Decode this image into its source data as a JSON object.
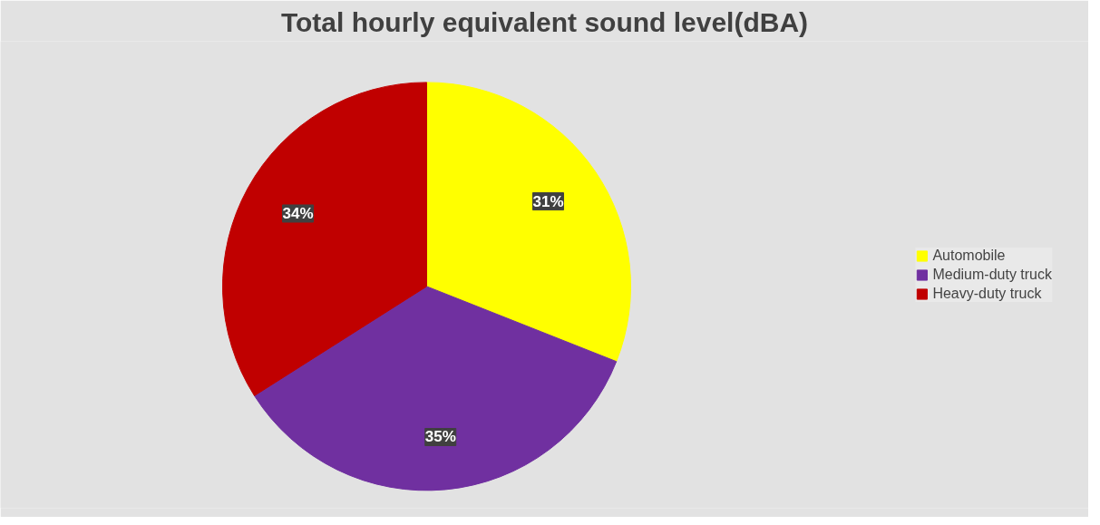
{
  "chart_data": {
    "type": "pie",
    "title": "Total hourly equivalent sound level(dBA)",
    "categories": [
      "Automobile",
      "Medium-duty truck",
      "Heavy-duty truck"
    ],
    "values": [
      31,
      35,
      34
    ],
    "colors": [
      "#ffff00",
      "#7030a0",
      "#c00000"
    ],
    "value_labels": [
      "31%",
      "35%",
      "34%"
    ],
    "legend": "right"
  }
}
